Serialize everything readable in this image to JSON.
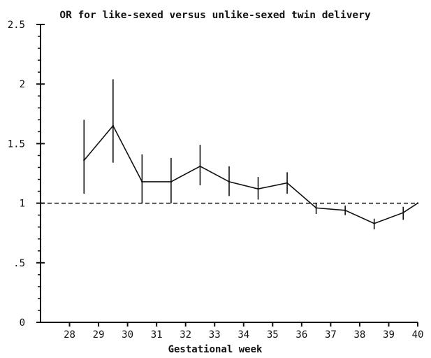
{
  "chart_data": {
    "type": "line",
    "title": "OR for like-sexed versus unlike-sexed twin delivery",
    "xlabel": "Gestational week",
    "ylabel": "",
    "xlim": [
      27,
      40
    ],
    "ylim": [
      0,
      2.5
    ],
    "x_ticks": [
      28,
      29,
      30,
      31,
      32,
      33,
      34,
      35,
      36,
      37,
      38,
      39,
      40
    ],
    "x_tick_labels": [
      "28",
      "29",
      "30",
      "31",
      "32",
      "33",
      "34",
      "35",
      "36",
      "37",
      "38",
      "39",
      "40"
    ],
    "y_ticks": [
      0,
      0.5,
      1,
      1.5,
      2,
      2.5
    ],
    "y_tick_labels": [
      "0",
      ".5",
      "1",
      "1.5",
      "2",
      "2.5"
    ],
    "reference_line": {
      "y": 1,
      "style": "dashed"
    },
    "series": [
      {
        "x": [
          28.5,
          29.5,
          30.5,
          31.5,
          32.5,
          33.5,
          34.5,
          35.5,
          36.5,
          37.5,
          38.5,
          39.5,
          40
        ],
        "y": [
          1.36,
          1.65,
          1.18,
          1.18,
          1.31,
          1.18,
          1.12,
          1.17,
          0.96,
          0.94,
          0.83,
          0.92,
          1.0
        ],
        "lower": [
          1.08,
          1.34,
          1.0,
          1.0,
          1.15,
          1.06,
          1.03,
          1.08,
          0.91,
          0.9,
          0.78,
          0.86,
          null
        ],
        "upper": [
          1.7,
          2.04,
          1.41,
          1.38,
          1.49,
          1.31,
          1.22,
          1.26,
          1.0,
          0.98,
          0.87,
          0.97,
          null
        ]
      }
    ],
    "colors": {
      "line": "#111111",
      "background": "#ffffff"
    }
  }
}
